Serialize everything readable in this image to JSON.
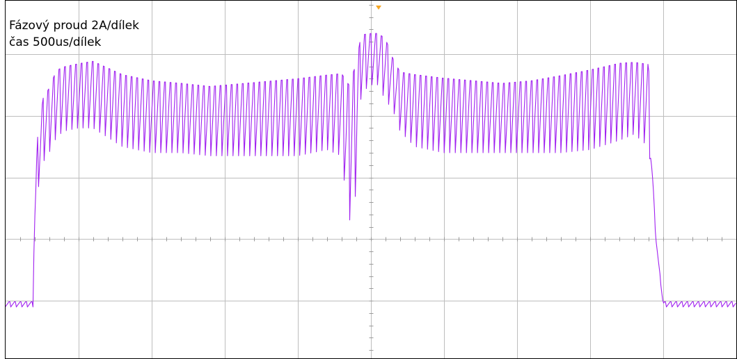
{
  "chart_data": {
    "type": "line",
    "title": "",
    "annotations": [
      "Fázový proud 2A/dílek",
      "čas 500us/dílek"
    ],
    "grid": {
      "enabled": true,
      "x_divisions": 10,
      "y_divisions": 6
    },
    "x_unit": "µs",
    "y_unit": "A",
    "xlim": [
      0,
      5000
    ],
    "ylim": [
      -2,
      10
    ],
    "grid_line_color": "#bdbdbd",
    "trigger_marker_color": "#f5a623",
    "series": [
      {
        "color": "#a020f0",
        "x": [
          0,
          190,
          200,
          220,
          260,
          300,
          350,
          400,
          500,
          600,
          800,
          1000,
          1200,
          1400,
          1600,
          1800,
          2000,
          2200,
          2300,
          2350,
          2400,
          2430,
          2450,
          2500,
          2550,
          2600,
          2650,
          2700,
          2800,
          3000,
          3200,
          3400,
          3600,
          3800,
          4000,
          4200,
          4300,
          4400,
          4420,
          4450,
          4500,
          4800,
          5000
        ],
        "y_high": [
          0.0,
          0.0,
          2.5,
          5.6,
          7.0,
          7.3,
          7.9,
          8.0,
          8.1,
          8.2,
          7.8,
          7.6,
          7.5,
          7.4,
          7.5,
          7.6,
          7.7,
          7.8,
          7.9,
          7.9,
          8.5,
          8.9,
          9.0,
          9.0,
          9.0,
          8.9,
          8.2,
          7.8,
          7.8,
          7.7,
          7.6,
          7.5,
          7.6,
          7.8,
          8.0,
          8.2,
          8.2,
          8.2,
          5.0,
          2.0,
          0.0,
          0.0,
          0.0
        ],
        "y_low": [
          -0.2,
          -0.2,
          2.5,
          3.5,
          4.5,
          4.8,
          5.3,
          5.5,
          5.6,
          5.6,
          5.0,
          4.8,
          4.8,
          4.7,
          4.7,
          4.7,
          4.7,
          4.9,
          4.7,
          2.5,
          3.5,
          6.5,
          6.8,
          7.0,
          7.0,
          6.5,
          6.2,
          5.5,
          5.0,
          4.8,
          4.8,
          4.8,
          4.8,
          4.8,
          4.9,
          5.2,
          5.4,
          5.0,
          4.0,
          2.0,
          -0.2,
          -0.2,
          -0.2
        ],
        "ripple_period_us": 38
      }
    ]
  }
}
